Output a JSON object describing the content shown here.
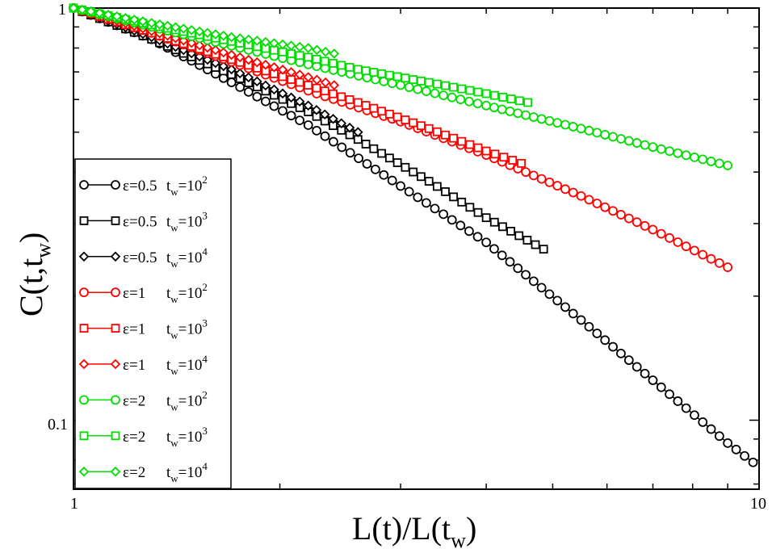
{
  "chart_data": {
    "type": "line",
    "xscale": "log",
    "yscale": "log",
    "xlim": [
      1,
      10
    ],
    "ylim": [
      0.068,
      1
    ],
    "x_ticks": [
      {
        "value": 1,
        "label": "1"
      },
      {
        "value": 10,
        "label": "10"
      }
    ],
    "y_ticks": [
      {
        "value": 0.1,
        "label": "0.1"
      },
      {
        "value": 1,
        "label": "1"
      }
    ],
    "xlabel": {
      "main": "L(t)/L(t",
      "sub": "w",
      "tail": ")"
    },
    "ylabel": {
      "main": "C(t,t",
      "sub": "w",
      "tail": ")"
    },
    "legend_position": "lower-left",
    "series": [
      {
        "name": "ε=0.5 t_w=10^2",
        "label_eps": "ε=0.5",
        "label_exp": "2",
        "color": "#000000",
        "marker": "circle",
        "points": [
          [
            1.0,
            1.0
          ],
          [
            1.3,
            0.84
          ],
          [
            1.7,
            0.66
          ],
          [
            2.2,
            0.52
          ],
          [
            3.0,
            0.37
          ],
          [
            4.0,
            0.27
          ],
          [
            5.5,
            0.175
          ],
          [
            7.0,
            0.125
          ],
          [
            9.0,
            0.088
          ],
          [
            9.8,
            0.079
          ]
        ]
      },
      {
        "name": "ε=0.5 t_w=10^3",
        "label_eps": "ε=0.5",
        "label_exp": "3",
        "color": "#000000",
        "marker": "square",
        "points": [
          [
            1.0,
            1.0
          ],
          [
            1.3,
            0.84
          ],
          [
            1.7,
            0.69
          ],
          [
            2.2,
            0.56
          ],
          [
            2.6,
            0.48
          ],
          [
            3.3,
            0.38
          ],
          [
            4.0,
            0.31
          ],
          [
            4.85,
            0.26
          ]
        ]
      },
      {
        "name": "ε=0.5 t_w=10^4",
        "label_eps": "ε=0.5",
        "label_exp": "4",
        "color": "#000000",
        "marker": "diamond",
        "points": [
          [
            1.0,
            1.0
          ],
          [
            1.3,
            0.85
          ],
          [
            1.7,
            0.71
          ],
          [
            2.2,
            0.58
          ],
          [
            2.6,
            0.5
          ]
        ]
      },
      {
        "name": "ε=1 t_w=10^2",
        "label_eps": "ε=1",
        "label_exp": "2",
        "color": "#ff0000",
        "marker": "circle",
        "points": [
          [
            1.0,
            1.0
          ],
          [
            1.3,
            0.87
          ],
          [
            1.7,
            0.74
          ],
          [
            2.2,
            0.63
          ],
          [
            3.0,
            0.53
          ],
          [
            4.0,
            0.44
          ],
          [
            5.5,
            0.35
          ],
          [
            7.0,
            0.29
          ],
          [
            9.0,
            0.235
          ]
        ]
      },
      {
        "name": "ε=1 t_w=10^3",
        "label_eps": "ε=1",
        "label_exp": "3",
        "color": "#ff0000",
        "marker": "square",
        "points": [
          [
            1.0,
            1.0
          ],
          [
            1.3,
            0.87
          ],
          [
            1.7,
            0.75
          ],
          [
            2.2,
            0.65
          ],
          [
            2.6,
            0.59
          ],
          [
            3.3,
            0.51
          ],
          [
            4.0,
            0.45
          ],
          [
            4.5,
            0.42
          ]
        ]
      },
      {
        "name": "ε=1 t_w=10^4",
        "label_eps": "ε=1",
        "label_exp": "4",
        "color": "#ff0000",
        "marker": "diamond",
        "points": [
          [
            1.0,
            1.0
          ],
          [
            1.3,
            0.88
          ],
          [
            1.7,
            0.77
          ],
          [
            2.2,
            0.68
          ],
          [
            2.4,
            0.65
          ]
        ]
      },
      {
        "name": "ε=2 t_w=10^2",
        "label_eps": "ε=2",
        "label_exp": "2",
        "color": "#00dd00",
        "marker": "circle",
        "points": [
          [
            1.0,
            1.0
          ],
          [
            1.3,
            0.9
          ],
          [
            1.7,
            0.81
          ],
          [
            2.2,
            0.73
          ],
          [
            3.0,
            0.65
          ],
          [
            4.0,
            0.58
          ],
          [
            5.5,
            0.51
          ],
          [
            7.0,
            0.46
          ],
          [
            9.0,
            0.415
          ]
        ]
      },
      {
        "name": "ε=2 t_w=10^3",
        "label_eps": "ε=2",
        "label_exp": "3",
        "color": "#00dd00",
        "marker": "square",
        "points": [
          [
            1.0,
            1.0
          ],
          [
            1.3,
            0.91
          ],
          [
            1.7,
            0.83
          ],
          [
            2.2,
            0.76
          ],
          [
            2.6,
            0.71
          ],
          [
            3.3,
            0.66
          ],
          [
            4.0,
            0.62
          ],
          [
            4.6,
            0.59
          ]
        ]
      },
      {
        "name": "ε=2 t_w=10^4",
        "label_eps": "ε=2",
        "label_exp": "4",
        "color": "#00dd00",
        "marker": "diamond",
        "points": [
          [
            1.0,
            1.0
          ],
          [
            1.3,
            0.92
          ],
          [
            1.7,
            0.85
          ],
          [
            2.2,
            0.8
          ],
          [
            2.4,
            0.775
          ]
        ]
      }
    ]
  }
}
